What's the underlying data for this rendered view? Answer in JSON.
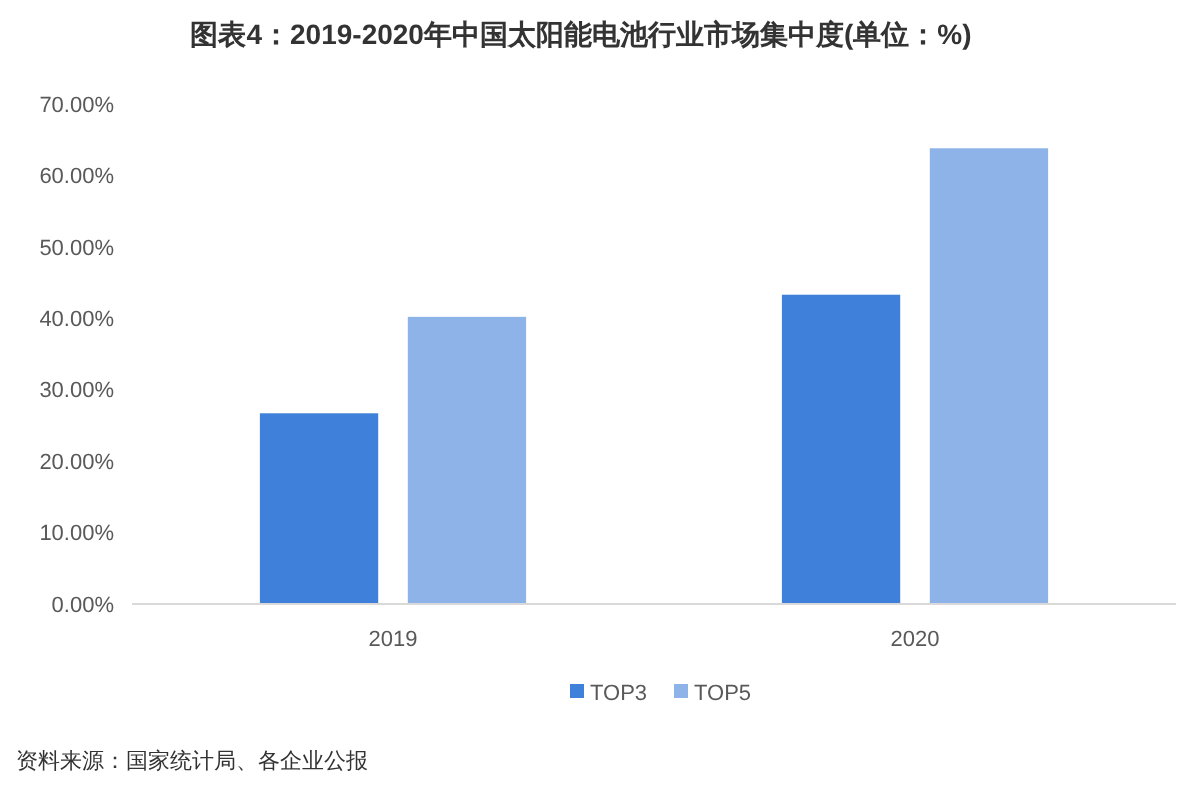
{
  "chart_data": {
    "type": "bar",
    "title": "图表4：2019-2020年中国太阳能电池行业市场集中度(单位：%)",
    "categories": [
      "2019",
      "2020"
    ],
    "series": [
      {
        "name": "TOP3",
        "color": "#3f80db",
        "values": [
          26.7,
          43.3
        ]
      },
      {
        "name": "TOP5",
        "color": "#8db3e8",
        "values": [
          40.2,
          63.8
        ]
      }
    ],
    "ylim": [
      0,
      70
    ],
    "yticks": [
      {
        "value": 0,
        "label": "0.00%"
      },
      {
        "value": 10,
        "label": "10.00%"
      },
      {
        "value": 20,
        "label": "20.00%"
      },
      {
        "value": 30,
        "label": "30.00%"
      },
      {
        "value": 40,
        "label": "40.00%"
      },
      {
        "value": 50,
        "label": "50.00%"
      },
      {
        "value": 60,
        "label": "60.00%"
      },
      {
        "value": 70,
        "label": "70.00%"
      }
    ],
    "legend": "bottom",
    "annotations": [
      "资料来源：国家统计局、各企业公报"
    ]
  }
}
